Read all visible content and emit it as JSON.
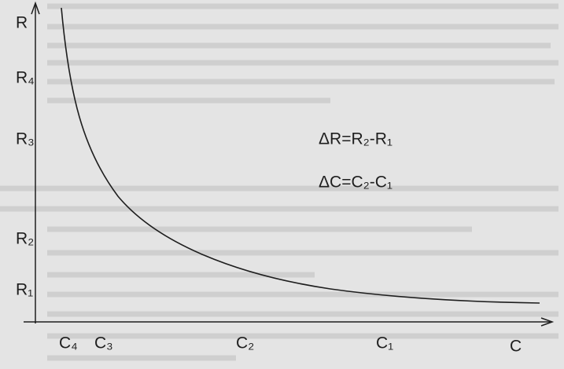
{
  "diagram": {
    "y_axis": {
      "label": "R",
      "ticks": [
        "R₄",
        "R₃",
        "R₂",
        "R₁"
      ]
    },
    "x_axis": {
      "label": "C",
      "ticks": [
        "C₄",
        "C₃",
        "C₂",
        "C₁"
      ]
    },
    "annotations": [
      "ΔR=R₂-R₁",
      "ΔC=C₂-C₁"
    ]
  }
}
